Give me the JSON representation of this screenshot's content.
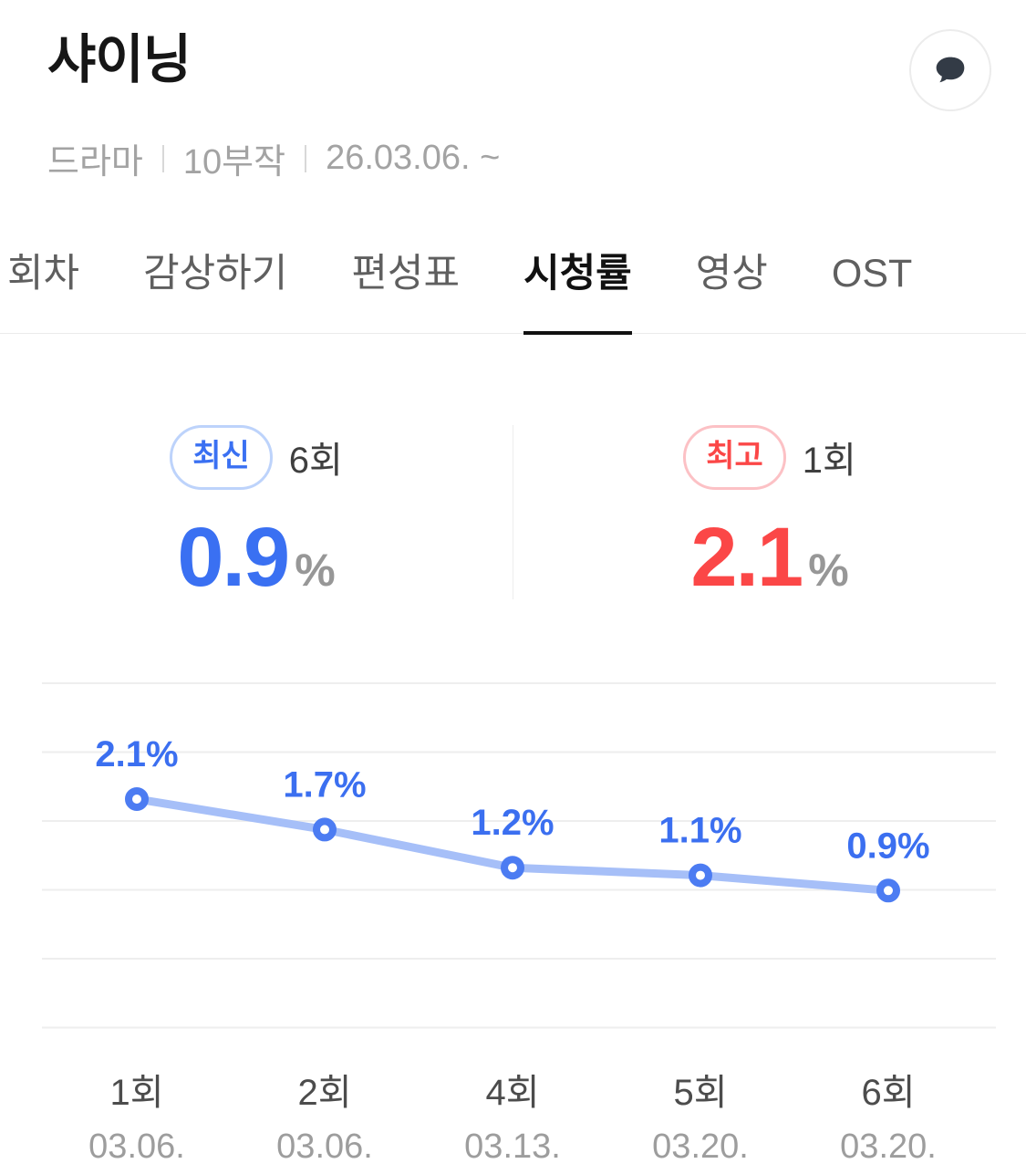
{
  "header": {
    "title": "샤이닝",
    "meta": [
      "드라마",
      "10부작",
      "26.03.06. ~"
    ],
    "comment_button": {
      "icon": "speech-bubble-icon"
    }
  },
  "tabs": [
    {
      "label": "회차",
      "active": false
    },
    {
      "label": "감상하기",
      "active": false
    },
    {
      "label": "편성표",
      "active": false
    },
    {
      "label": "시청률",
      "active": true
    },
    {
      "label": "영상",
      "active": false
    },
    {
      "label": "OST",
      "active": false
    }
  ],
  "stats": {
    "latest": {
      "badge_label": "최신",
      "episode": "6회",
      "value": "0.9",
      "unit": "%"
    },
    "highest": {
      "badge_label": "최고",
      "episode": "1회",
      "value": "2.1",
      "unit": "%"
    }
  },
  "chart_data": {
    "type": "line",
    "title": "",
    "xlabel": "",
    "ylabel": "",
    "categories": [
      "1회",
      "2회",
      "4회",
      "5회",
      "6회"
    ],
    "category_dates": [
      "03.06.",
      "03.06.",
      "03.13.",
      "03.20.",
      "03.20."
    ],
    "values": [
      2.1,
      1.7,
      1.2,
      1.1,
      0.9
    ],
    "point_labels": [
      "2.1%",
      "1.7%",
      "1.2%",
      "1.1%",
      "0.9%"
    ],
    "grid": true,
    "gridline_count": 6,
    "legend": false,
    "line_color": "#A6BFF8",
    "point_color": "#4C7CF2",
    "label_color": "#3B6FF0"
  },
  "colors": {
    "accent_blue": "#3A70F2",
    "accent_red": "#FB4747",
    "badge_blue_border": "#BDD3FB",
    "badge_red_border": "#FCC1C5",
    "line_blue": "#A6BFF8",
    "point_stroke": "#4C7CF2",
    "grid": "#EEEEEE",
    "unit_gray": "#979797",
    "tab_inactive": "#5F5F5F",
    "meta_gray": "#A3A3A3",
    "date_gray": "#9D9D9D",
    "episode_gray": "#4C4C4C",
    "divider": "#EDEDED",
    "bubble_dark": "#333B46"
  }
}
